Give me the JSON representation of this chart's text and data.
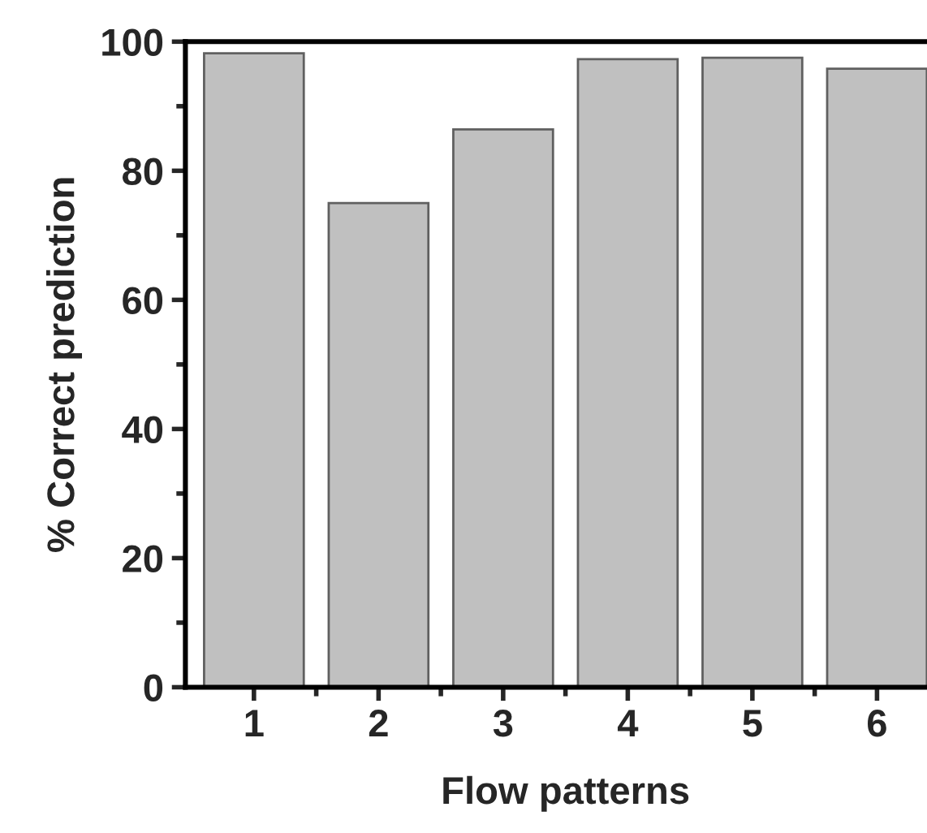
{
  "chart_data": {
    "type": "bar",
    "xlabel": "Flow patterns",
    "ylabel": "% Correct prediction",
    "categories": [
      "1",
      "2",
      "3",
      "4",
      "5",
      "6"
    ],
    "values": [
      98.2,
      75,
      86.4,
      97.3,
      97.5,
      95.8
    ],
    "color": "#c0c0c0",
    "ylim": [
      0,
      100
    ],
    "yticks": [
      0,
      20,
      40,
      60,
      80,
      100
    ],
    "grid": false
  }
}
